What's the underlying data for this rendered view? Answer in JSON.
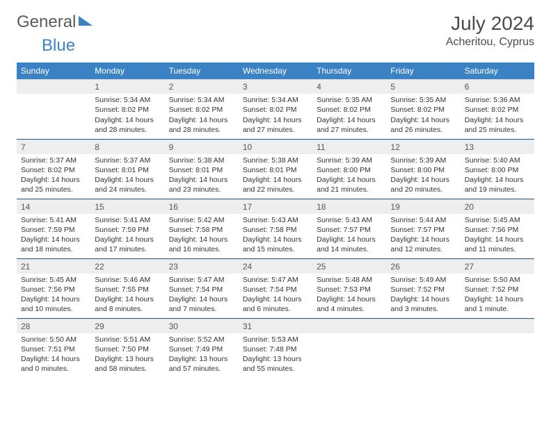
{
  "logo": {
    "text1": "General",
    "text2": "Blue"
  },
  "title": "July 2024",
  "location": "Acheritou, Cyprus",
  "colors": {
    "header_bg": "#3b82c4",
    "header_text": "#ffffff",
    "daynum_bg": "#eeeeee",
    "week_border": "#2a5f8a",
    "logo_gray": "#5a5a5a",
    "logo_blue": "#3b82c4"
  },
  "weekdays": [
    "Sunday",
    "Monday",
    "Tuesday",
    "Wednesday",
    "Thursday",
    "Friday",
    "Saturday"
  ],
  "weeks": [
    [
      null,
      {
        "n": "1",
        "sr": "Sunrise: 5:34 AM",
        "ss": "Sunset: 8:02 PM",
        "d1": "Daylight: 14 hours",
        "d2": "and 28 minutes."
      },
      {
        "n": "2",
        "sr": "Sunrise: 5:34 AM",
        "ss": "Sunset: 8:02 PM",
        "d1": "Daylight: 14 hours",
        "d2": "and 28 minutes."
      },
      {
        "n": "3",
        "sr": "Sunrise: 5:34 AM",
        "ss": "Sunset: 8:02 PM",
        "d1": "Daylight: 14 hours",
        "d2": "and 27 minutes."
      },
      {
        "n": "4",
        "sr": "Sunrise: 5:35 AM",
        "ss": "Sunset: 8:02 PM",
        "d1": "Daylight: 14 hours",
        "d2": "and 27 minutes."
      },
      {
        "n": "5",
        "sr": "Sunrise: 5:35 AM",
        "ss": "Sunset: 8:02 PM",
        "d1": "Daylight: 14 hours",
        "d2": "and 26 minutes."
      },
      {
        "n": "6",
        "sr": "Sunrise: 5:36 AM",
        "ss": "Sunset: 8:02 PM",
        "d1": "Daylight: 14 hours",
        "d2": "and 25 minutes."
      }
    ],
    [
      {
        "n": "7",
        "sr": "Sunrise: 5:37 AM",
        "ss": "Sunset: 8:02 PM",
        "d1": "Daylight: 14 hours",
        "d2": "and 25 minutes."
      },
      {
        "n": "8",
        "sr": "Sunrise: 5:37 AM",
        "ss": "Sunset: 8:01 PM",
        "d1": "Daylight: 14 hours",
        "d2": "and 24 minutes."
      },
      {
        "n": "9",
        "sr": "Sunrise: 5:38 AM",
        "ss": "Sunset: 8:01 PM",
        "d1": "Daylight: 14 hours",
        "d2": "and 23 minutes."
      },
      {
        "n": "10",
        "sr": "Sunrise: 5:38 AM",
        "ss": "Sunset: 8:01 PM",
        "d1": "Daylight: 14 hours",
        "d2": "and 22 minutes."
      },
      {
        "n": "11",
        "sr": "Sunrise: 5:39 AM",
        "ss": "Sunset: 8:00 PM",
        "d1": "Daylight: 14 hours",
        "d2": "and 21 minutes."
      },
      {
        "n": "12",
        "sr": "Sunrise: 5:39 AM",
        "ss": "Sunset: 8:00 PM",
        "d1": "Daylight: 14 hours",
        "d2": "and 20 minutes."
      },
      {
        "n": "13",
        "sr": "Sunrise: 5:40 AM",
        "ss": "Sunset: 8:00 PM",
        "d1": "Daylight: 14 hours",
        "d2": "and 19 minutes."
      }
    ],
    [
      {
        "n": "14",
        "sr": "Sunrise: 5:41 AM",
        "ss": "Sunset: 7:59 PM",
        "d1": "Daylight: 14 hours",
        "d2": "and 18 minutes."
      },
      {
        "n": "15",
        "sr": "Sunrise: 5:41 AM",
        "ss": "Sunset: 7:59 PM",
        "d1": "Daylight: 14 hours",
        "d2": "and 17 minutes."
      },
      {
        "n": "16",
        "sr": "Sunrise: 5:42 AM",
        "ss": "Sunset: 7:58 PM",
        "d1": "Daylight: 14 hours",
        "d2": "and 16 minutes."
      },
      {
        "n": "17",
        "sr": "Sunrise: 5:43 AM",
        "ss": "Sunset: 7:58 PM",
        "d1": "Daylight: 14 hours",
        "d2": "and 15 minutes."
      },
      {
        "n": "18",
        "sr": "Sunrise: 5:43 AM",
        "ss": "Sunset: 7:57 PM",
        "d1": "Daylight: 14 hours",
        "d2": "and 14 minutes."
      },
      {
        "n": "19",
        "sr": "Sunrise: 5:44 AM",
        "ss": "Sunset: 7:57 PM",
        "d1": "Daylight: 14 hours",
        "d2": "and 12 minutes."
      },
      {
        "n": "20",
        "sr": "Sunrise: 5:45 AM",
        "ss": "Sunset: 7:56 PM",
        "d1": "Daylight: 14 hours",
        "d2": "and 11 minutes."
      }
    ],
    [
      {
        "n": "21",
        "sr": "Sunrise: 5:45 AM",
        "ss": "Sunset: 7:56 PM",
        "d1": "Daylight: 14 hours",
        "d2": "and 10 minutes."
      },
      {
        "n": "22",
        "sr": "Sunrise: 5:46 AM",
        "ss": "Sunset: 7:55 PM",
        "d1": "Daylight: 14 hours",
        "d2": "and 8 minutes."
      },
      {
        "n": "23",
        "sr": "Sunrise: 5:47 AM",
        "ss": "Sunset: 7:54 PM",
        "d1": "Daylight: 14 hours",
        "d2": "and 7 minutes."
      },
      {
        "n": "24",
        "sr": "Sunrise: 5:47 AM",
        "ss": "Sunset: 7:54 PM",
        "d1": "Daylight: 14 hours",
        "d2": "and 6 minutes."
      },
      {
        "n": "25",
        "sr": "Sunrise: 5:48 AM",
        "ss": "Sunset: 7:53 PM",
        "d1": "Daylight: 14 hours",
        "d2": "and 4 minutes."
      },
      {
        "n": "26",
        "sr": "Sunrise: 5:49 AM",
        "ss": "Sunset: 7:52 PM",
        "d1": "Daylight: 14 hours",
        "d2": "and 3 minutes."
      },
      {
        "n": "27",
        "sr": "Sunrise: 5:50 AM",
        "ss": "Sunset: 7:52 PM",
        "d1": "Daylight: 14 hours",
        "d2": "and 1 minute."
      }
    ],
    [
      {
        "n": "28",
        "sr": "Sunrise: 5:50 AM",
        "ss": "Sunset: 7:51 PM",
        "d1": "Daylight: 14 hours",
        "d2": "and 0 minutes."
      },
      {
        "n": "29",
        "sr": "Sunrise: 5:51 AM",
        "ss": "Sunset: 7:50 PM",
        "d1": "Daylight: 13 hours",
        "d2": "and 58 minutes."
      },
      {
        "n": "30",
        "sr": "Sunrise: 5:52 AM",
        "ss": "Sunset: 7:49 PM",
        "d1": "Daylight: 13 hours",
        "d2": "and 57 minutes."
      },
      {
        "n": "31",
        "sr": "Sunrise: 5:53 AM",
        "ss": "Sunset: 7:48 PM",
        "d1": "Daylight: 13 hours",
        "d2": "and 55 minutes."
      },
      null,
      null,
      null
    ]
  ]
}
